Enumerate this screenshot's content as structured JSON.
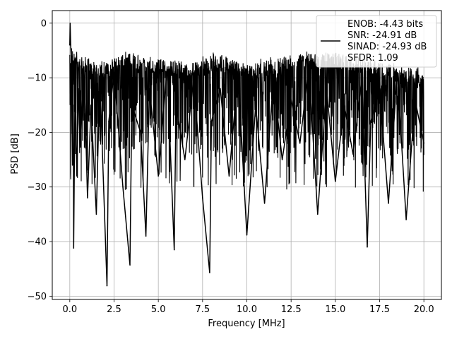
{
  "chart_data": {
    "type": "line",
    "xlabel": "Frequency [MHz]",
    "ylabel": "PSD [dB]",
    "xlim": [
      -0.99,
      20.99
    ],
    "ylim": [
      -50.6,
      2.3
    ],
    "xticks": [
      0,
      2.5,
      5,
      7.5,
      10,
      12.5,
      15,
      17.5,
      20
    ],
    "xtick_labels": [
      "0.0",
      "2.5",
      "5.0",
      "7.5",
      "10.0",
      "12.5",
      "15.0",
      "17.5",
      "20.0"
    ],
    "yticks": [
      0,
      -10,
      -20,
      -30,
      -40,
      -50
    ],
    "ytick_labels": [
      "0",
      "−10",
      "−20",
      "−30",
      "−40",
      "−50"
    ],
    "grid": true,
    "legend_position": "top-right",
    "series_color": "#000000",
    "legend": {
      "line_label": "",
      "entries": [
        "ENOB: -4.43 bits",
        "SNR: -24.91 dB",
        "SINAD: -24.93 dB",
        "SFDR: 1.09"
      ]
    },
    "series": [
      {
        "name": "",
        "x": [
          0.0,
          0.02,
          0.05,
          0.1,
          0.15,
          0.2,
          0.22,
          0.3,
          0.4,
          0.5,
          0.6,
          0.8,
          1.0,
          1.2,
          1.5,
          1.7,
          2.1,
          2.2,
          2.5,
          3.0,
          3.4,
          3.5,
          4.0,
          4.3,
          4.5,
          5.0,
          5.5,
          5.9,
          6.0,
          6.5,
          7.0,
          7.5,
          7.9,
          8.0,
          8.5,
          9.0,
          9.5,
          10.0,
          10.5,
          11.0,
          11.5,
          12.0,
          12.5,
          13.0,
          13.5,
          14.0,
          14.5,
          15.0,
          15.5,
          16.0,
          16.5,
          16.8,
          17.0,
          17.5,
          18.0,
          18.5,
          19.0,
          19.5,
          20.0
        ],
        "y": [
          -4,
          0,
          -4,
          -8,
          -26,
          -15,
          -41.2,
          -10,
          -28,
          -12,
          -22,
          -8,
          -32,
          -15,
          -35,
          -10,
          -48.1,
          -18,
          -9,
          -30,
          -44.3,
          -15,
          -20,
          -39,
          -12,
          -28,
          -8,
          -41.5,
          -15,
          -25,
          -10,
          -32,
          -45.7,
          -18,
          -12,
          -28,
          -9,
          -38.8,
          -15,
          -33,
          -10,
          -25,
          -14,
          -22,
          -8,
          -35,
          -12,
          -29,
          -15,
          -24,
          -10,
          -41,
          -18,
          -12,
          -33,
          -9,
          -36,
          -14,
          -22
        ]
      }
    ],
    "noise_band": {
      "upper": [
        -6,
        -9,
        -7,
        -8,
        -9,
        -7,
        -9,
        -8,
        -7,
        -7,
        -8,
        -9,
        -10
      ],
      "lower": [
        -23,
        -23,
        -24,
        -22,
        -23,
        -24,
        -23,
        -24,
        -23,
        -24,
        -23,
        -23,
        -24
      ],
      "at_x": [
        0,
        1.67,
        3.33,
        5,
        6.67,
        8.33,
        10,
        11.67,
        13.33,
        15,
        16.67,
        18.33,
        20
      ]
    }
  }
}
